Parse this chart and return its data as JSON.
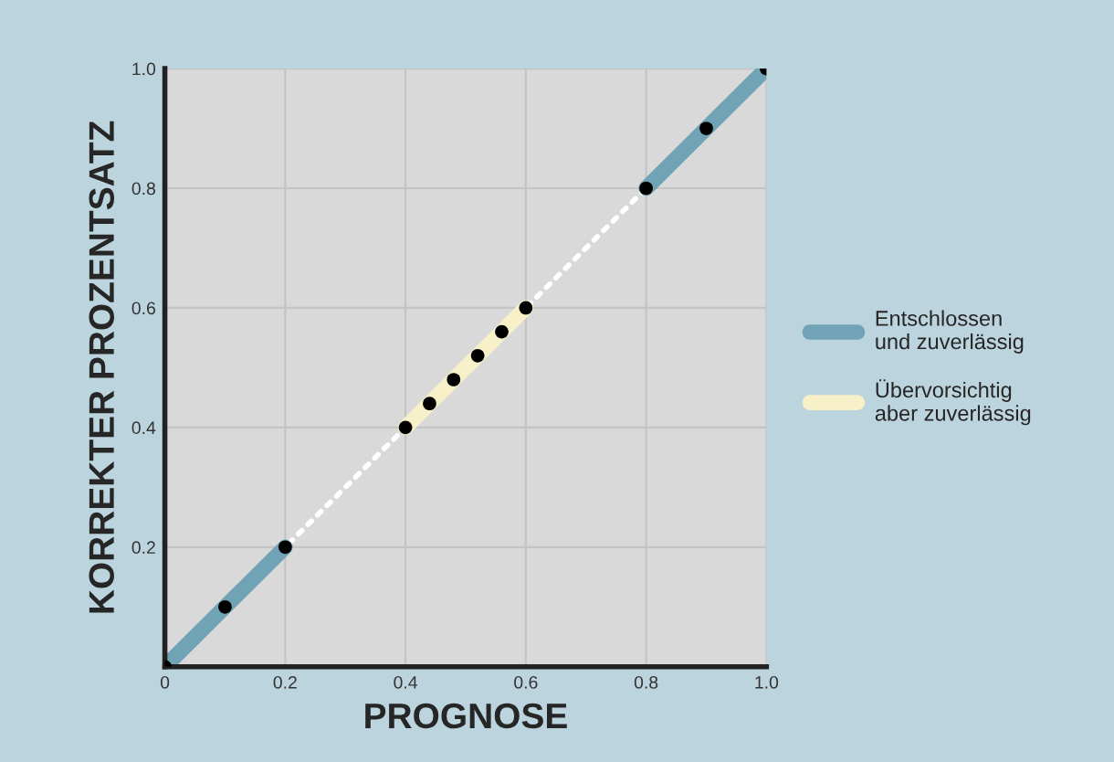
{
  "chart_data": {
    "type": "line",
    "xlabel": "PROGNOSE",
    "ylabel": "KORREKTER PROZENTSATZ",
    "series": [
      {
        "color": "#ffffff",
        "line_style": "dotted",
        "marker": "none",
        "x": [
          0,
          1
        ],
        "values": [
          0,
          1
        ]
      },
      {
        "name": "Entschlossen\nund zuverlässig",
        "color": "#6fa3b5",
        "line_style": "solid",
        "marker": "none",
        "x": [
          0,
          0.1,
          0.2,
          0.5,
          0.8,
          0.9,
          1.0
        ],
        "values": [
          0,
          0.1,
          0.2,
          null,
          0.8,
          0.9,
          1.0
        ]
      },
      {
        "name": "Übervorsichtig\naber zuverlässig",
        "color": "#f7f0c8",
        "line_style": "solid",
        "marker": "none",
        "x": [
          0.4,
          0.44,
          0.48,
          0.52,
          0.56,
          0.6
        ],
        "values": [
          0.4,
          0.44,
          0.48,
          0.52,
          0.56,
          0.6
        ]
      },
      {
        "type": "scatter",
        "color": "#000000",
        "marker": "circle",
        "x": [
          0,
          0.1,
          0.2,
          0.4,
          0.44,
          0.48,
          0.52,
          0.56,
          0.6,
          0.8,
          0.9,
          1.0
        ],
        "values": [
          0,
          0.1,
          0.2,
          0.4,
          0.44,
          0.48,
          0.52,
          0.56,
          0.6,
          0.8,
          0.9,
          1.0
        ]
      }
    ],
    "xlim": [
      0,
      1
    ],
    "ylim": [
      0,
      1
    ],
    "xticks": [
      {
        "value": 0,
        "label": "0"
      },
      0.2,
      0.4,
      0.6,
      0.8,
      {
        "value": 1,
        "label": "1.0"
      }
    ],
    "yticks": [
      {
        "value": 0,
        "label": null
      },
      0.2,
      0.4,
      0.6,
      0.8,
      {
        "value": 1,
        "label": "1.0"
      }
    ],
    "grid": true,
    "legend": "right"
  }
}
